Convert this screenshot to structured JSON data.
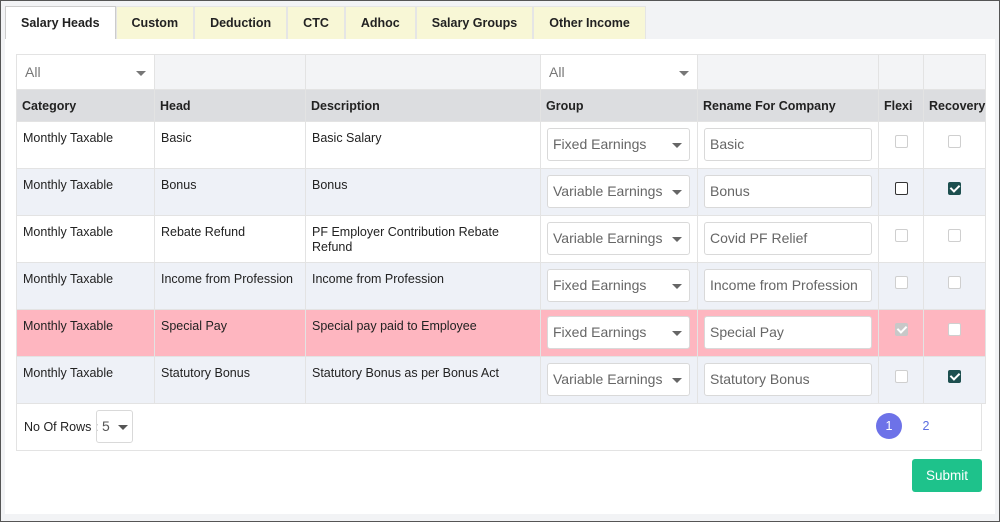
{
  "tabs": [
    "Salary Heads",
    "Custom",
    "Deduction",
    "CTC",
    "Adhoc",
    "Salary Groups",
    "Other Income"
  ],
  "filters": {
    "category": "All",
    "group": "All"
  },
  "columns": [
    "Category",
    "Head",
    "Description",
    "Group",
    "Rename For Company",
    "Flexi",
    "Recovery"
  ],
  "rows": [
    {
      "category": "Monthly Taxable",
      "head": "Basic",
      "description": "Basic Salary",
      "group": "Fixed Earnings",
      "rename": "Basic",
      "flexi": {
        "checked": false,
        "disabled": true
      },
      "recovery": {
        "checked": false,
        "disabled": true
      },
      "highlighted": false
    },
    {
      "category": "Monthly Taxable",
      "head": "Bonus",
      "description": "Bonus",
      "group": "Variable Earnings",
      "rename": "Bonus",
      "flexi": {
        "checked": false,
        "disabled": false
      },
      "recovery": {
        "checked": true,
        "disabled": false
      },
      "highlighted": false
    },
    {
      "category": "Monthly Taxable",
      "head": "Rebate Refund",
      "description": "PF Employer Contribution Rebate Refund",
      "group": "Variable Earnings",
      "rename": "Covid PF Relief",
      "flexi": {
        "checked": false,
        "disabled": true
      },
      "recovery": {
        "checked": false,
        "disabled": true
      },
      "highlighted": false
    },
    {
      "category": "Monthly Taxable",
      "head": "Income from Profession",
      "description": "Income from Profession",
      "group": "Fixed Earnings",
      "rename": "Income from Profession",
      "flexi": {
        "checked": false,
        "disabled": true
      },
      "recovery": {
        "checked": false,
        "disabled": true
      },
      "highlighted": false
    },
    {
      "category": "Monthly Taxable",
      "head": "Special Pay",
      "description": "Special pay paid to Employee",
      "group": "Fixed Earnings",
      "rename": "Special Pay",
      "flexi": {
        "checked": true,
        "disabled": true
      },
      "recovery": {
        "checked": false,
        "disabled": true
      },
      "highlighted": true
    },
    {
      "category": "Monthly Taxable",
      "head": "Statutory Bonus",
      "description": "Statutory Bonus as per Bonus Act",
      "group": "Variable Earnings",
      "rename": "Statutory Bonus",
      "flexi": {
        "checked": false,
        "disabled": true
      },
      "recovery": {
        "checked": true,
        "disabled": false
      },
      "highlighted": false
    }
  ],
  "pagination": {
    "label": "No Of Rows :",
    "rows_per_page": "5",
    "pages": [
      "1",
      "2"
    ]
  },
  "submit": "Submit"
}
